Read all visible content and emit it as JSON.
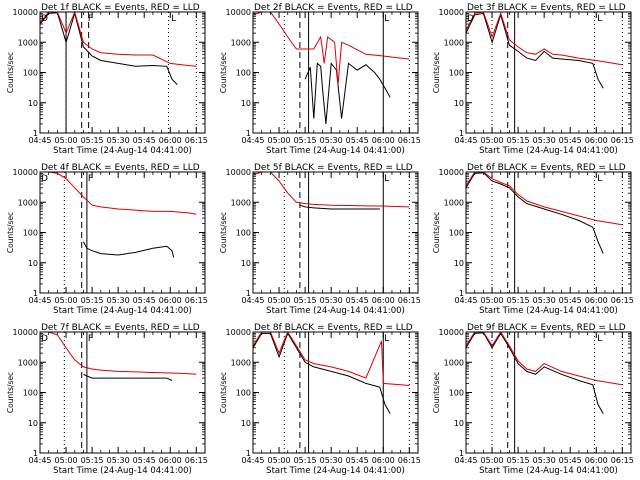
{
  "figure": {
    "ylabel": "Counts/sec",
    "xlabel": "Start Time (24-Aug-14 04:41:00)",
    "series_labels": {
      "black": "BLACK = Events",
      "red": "RED = LLD"
    },
    "colors": {
      "events": "#000000",
      "lld": "#e00000",
      "axes": "#000000",
      "background": "#ffffff"
    }
  },
  "chart_data": [
    {
      "type": "line",
      "title": "Det 1f BLACK = Events, RED = LLD",
      "xlim": [
        "04:45",
        "06:20"
      ],
      "ylim": [
        1,
        10000
      ],
      "yscale": "log",
      "xticks": [
        "04:45",
        "05:00",
        "05:15",
        "05:30",
        "05:45",
        "06:00",
        "06:15"
      ],
      "yticks": [
        "1",
        "10",
        "100",
        "1000",
        "10000"
      ],
      "markers": {
        "dotted": [
          "05:00",
          "05:59",
          "06:15"
        ],
        "dashed": [
          "05:09",
          "05:13"
        ],
        "solid": [
          "05:00"
        ]
      },
      "annotations": [
        {
          "text": "D",
          "x": "04:45"
        },
        {
          "text": "F",
          "x": "05:12"
        },
        {
          "text": "L",
          "x": "06:00"
        }
      ],
      "series": [
        {
          "name": "Events",
          "x": [
            "04:45",
            "04:50",
            "04:55",
            "05:00",
            "05:05",
            "05:10",
            "05:15",
            "05:20",
            "05:30",
            "05:40",
            "05:50",
            "05:58",
            "06:01",
            "06:04"
          ],
          "values": [
            4000,
            9000,
            9500,
            1000,
            9000,
            700,
            350,
            250,
            200,
            160,
            170,
            160,
            60,
            40
          ]
        },
        {
          "name": "LLD",
          "x": [
            "04:45",
            "04:50",
            "04:55",
            "05:00",
            "05:05",
            "05:10",
            "05:15",
            "05:20",
            "05:30",
            "05:40",
            "05:50",
            "06:00",
            "06:10",
            "06:15"
          ],
          "values": [
            4500,
            10000,
            10000,
            2000,
            10000,
            1000,
            600,
            450,
            400,
            380,
            380,
            200,
            170,
            160
          ]
        }
      ]
    },
    {
      "type": "line",
      "title": "Det 2f BLACK = Events, RED = LLD",
      "xlim": [
        "04:45",
        "06:20"
      ],
      "ylim": [
        1,
        10000
      ],
      "yscale": "log",
      "xticks": [
        "04:45",
        "05:00",
        "05:15",
        "05:30",
        "05:45",
        "06:00",
        "06:15"
      ],
      "yticks": [
        "1",
        "10",
        "100",
        "1000",
        "10000"
      ],
      "markers": {
        "dotted": [
          "05:03",
          "06:15"
        ],
        "dashed": [
          "05:12"
        ],
        "solid": [
          "05:17",
          "06:00"
        ]
      },
      "annotations": [
        {
          "text": "L",
          "x": "06:00"
        }
      ],
      "series": [
        {
          "name": "Events",
          "x": [
            "05:15",
            "05:18",
            "05:20",
            "05:22",
            "05:24",
            "05:25",
            "05:27",
            "05:30",
            "05:33",
            "05:36",
            "05:40",
            "05:45",
            "05:50",
            "05:55",
            "05:58",
            "06:01",
            "06:04"
          ],
          "values": [
            60,
            150,
            3,
            200,
            160,
            30,
            2,
            200,
            120,
            3,
            200,
            120,
            180,
            100,
            60,
            30,
            15
          ]
        },
        {
          "name": "LLD",
          "x": [
            "04:45",
            "04:50",
            "04:55",
            "05:00",
            "05:05",
            "05:10",
            "05:15",
            "05:20",
            "05:24",
            "05:26",
            "05:28",
            "05:32",
            "05:34",
            "05:36",
            "05:40",
            "05:50",
            "06:00",
            "06:10",
            "06:15"
          ],
          "values": [
            8000,
            10000,
            10000,
            4000,
            1500,
            600,
            600,
            600,
            1500,
            200,
            1500,
            1000,
            40,
            1000,
            800,
            400,
            350,
            300,
            280
          ]
        }
      ]
    },
    {
      "type": "line",
      "title": "Det 3f BLACK = Events, RED = LLD",
      "xlim": [
        "04:45",
        "06:20"
      ],
      "ylim": [
        1,
        10000
      ],
      "yscale": "log",
      "xticks": [
        "04:45",
        "05:00",
        "05:15",
        "05:30",
        "05:45",
        "06:00",
        "06:15"
      ],
      "yticks": [
        "1",
        "10",
        "100",
        "1000",
        "10000"
      ],
      "markers": {
        "dotted": [
          "05:00",
          "05:59",
          "06:15"
        ],
        "dashed": [
          "05:09"
        ],
        "solid": [
          "05:13"
        ]
      },
      "annotations": [
        {
          "text": "D",
          "x": "04:45"
        },
        {
          "text": "L",
          "x": "06:00"
        }
      ],
      "series": [
        {
          "name": "Events",
          "x": [
            "04:45",
            "04:50",
            "04:55",
            "05:00",
            "05:05",
            "05:10",
            "05:15",
            "05:20",
            "05:25",
            "05:30",
            "05:35",
            "05:40",
            "05:50",
            "05:58",
            "06:01",
            "06:04"
          ],
          "values": [
            2000,
            8000,
            9000,
            1000,
            8000,
            800,
            500,
            300,
            250,
            500,
            300,
            280,
            250,
            200,
            60,
            30
          ]
        },
        {
          "name": "LLD",
          "x": [
            "04:45",
            "04:50",
            "04:55",
            "05:00",
            "05:05",
            "05:10",
            "05:15",
            "05:20",
            "05:25",
            "05:30",
            "05:35",
            "05:40",
            "05:50",
            "06:00",
            "06:10",
            "06:15"
          ],
          "values": [
            2500,
            9000,
            10000,
            1500,
            9000,
            1200,
            700,
            450,
            400,
            600,
            400,
            380,
            300,
            250,
            200,
            180
          ]
        }
      ]
    },
    {
      "type": "line",
      "title": "Det 4f BLACK = Events, RED = LLD",
      "xlim": [
        "04:45",
        "06:20"
      ],
      "ylim": [
        1,
        10000
      ],
      "yscale": "log",
      "xticks": [
        "04:45",
        "05:00",
        "05:15",
        "05:30",
        "05:45",
        "06:00",
        "06:15"
      ],
      "yticks": [
        "1",
        "10",
        "100",
        "1000",
        "10000"
      ],
      "markers": {
        "dotted": [
          "04:59"
        ],
        "dashed": [
          "05:09"
        ],
        "solid": [
          "05:12"
        ]
      },
      "annotations": [
        {
          "text": "D",
          "x": "04:45"
        },
        {
          "text": "F",
          "x": "05:12"
        }
      ],
      "series": [
        {
          "name": "Events",
          "x": [
            "05:10",
            "05:12",
            "05:15",
            "05:20",
            "05:30",
            "05:40",
            "05:50",
            "05:58",
            "06:01",
            "06:02"
          ],
          "values": [
            50,
            30,
            25,
            20,
            18,
            22,
            30,
            35,
            25,
            15
          ]
        },
        {
          "name": "LLD",
          "x": [
            "04:45",
            "04:50",
            "04:55",
            "05:00",
            "05:05",
            "05:10",
            "05:15",
            "05:20",
            "05:30",
            "05:40",
            "05:50",
            "06:00",
            "06:10",
            "06:15"
          ],
          "values": [
            10000,
            10000,
            9000,
            6000,
            3000,
            1500,
            800,
            700,
            600,
            550,
            500,
            500,
            450,
            400
          ]
        }
      ]
    },
    {
      "type": "line",
      "title": "Det 5f BLACK = Events, RED = LLD",
      "xlim": [
        "04:45",
        "06:20"
      ],
      "ylim": [
        1,
        10000
      ],
      "yscale": "log",
      "xticks": [
        "04:45",
        "05:00",
        "05:15",
        "05:30",
        "05:45",
        "06:00",
        "06:15"
      ],
      "yticks": [
        "1",
        "10",
        "100",
        "1000",
        "10000"
      ],
      "markers": {
        "dotted": [
          "05:03",
          "06:15"
        ],
        "dashed": [
          "05:12"
        ],
        "solid": [
          "05:17",
          "06:00"
        ]
      },
      "annotations": [
        {
          "text": "L",
          "x": "06:00"
        }
      ],
      "series": [
        {
          "name": "Events",
          "x": [
            "05:12",
            "05:15",
            "05:20",
            "05:30",
            "05:40",
            "05:50",
            "05:58"
          ],
          "values": [
            800,
            700,
            650,
            600,
            600,
            600,
            600
          ]
        },
        {
          "name": "LLD",
          "x": [
            "04:45",
            "04:50",
            "04:55",
            "05:00",
            "05:05",
            "05:10",
            "05:15",
            "05:20",
            "05:30",
            "05:40",
            "05:50",
            "06:00",
            "06:10",
            "06:15"
          ],
          "values": [
            8000,
            10000,
            10000,
            5000,
            2000,
            1000,
            900,
            850,
            800,
            780,
            760,
            750,
            720,
            700
          ]
        }
      ]
    },
    {
      "type": "line",
      "title": "Det 6f BLACK = Events, RED = LLD",
      "xlim": [
        "04:45",
        "06:20"
      ],
      "ylim": [
        1,
        10000
      ],
      "yscale": "log",
      "xticks": [
        "04:45",
        "05:00",
        "05:15",
        "05:30",
        "05:45",
        "06:00",
        "06:15"
      ],
      "yticks": [
        "1",
        "10",
        "100",
        "1000",
        "10000"
      ],
      "markers": {
        "dotted": [
          "05:00",
          "05:59",
          "06:15"
        ],
        "dashed": [
          "05:09"
        ],
        "solid": [
          "05:13"
        ]
      },
      "annotations": [
        {
          "text": "L",
          "x": "06:00"
        }
      ],
      "series": [
        {
          "name": "Events",
          "x": [
            "04:45",
            "04:50",
            "04:55",
            "05:00",
            "05:05",
            "05:10",
            "05:15",
            "05:20",
            "05:30",
            "05:40",
            "05:50",
            "05:58",
            "06:01",
            "06:04"
          ],
          "values": [
            3000,
            9000,
            9500,
            5000,
            4000,
            3000,
            1500,
            900,
            600,
            400,
            250,
            150,
            50,
            20
          ]
        },
        {
          "name": "LLD",
          "x": [
            "04:45",
            "04:50",
            "04:55",
            "05:00",
            "05:05",
            "05:10",
            "05:15",
            "05:20",
            "05:30",
            "05:40",
            "05:50",
            "06:00",
            "06:10",
            "06:15"
          ],
          "values": [
            3500,
            10000,
            10000,
            6000,
            4500,
            3500,
            1800,
            1100,
            700,
            500,
            350,
            250,
            200,
            180
          ]
        }
      ]
    },
    {
      "type": "line",
      "title": "Det 7f BLACK = Events, RED = LLD",
      "xlim": [
        "04:45",
        "06:20"
      ],
      "ylim": [
        1,
        10000
      ],
      "yscale": "log",
      "xticks": [
        "04:45",
        "05:00",
        "05:15",
        "05:30",
        "05:45",
        "06:00",
        "06:15"
      ],
      "yticks": [
        "1",
        "10",
        "100",
        "1000",
        "10000"
      ],
      "markers": {
        "dotted": [
          "04:59"
        ],
        "dashed": [
          "05:09"
        ],
        "solid": [
          "05:12"
        ]
      },
      "annotations": [
        {
          "text": "D",
          "x": "04:45"
        },
        {
          "text": "F",
          "x": "05:12"
        }
      ],
      "series": [
        {
          "name": "Events",
          "x": [
            "05:10",
            "05:12",
            "05:15",
            "05:20",
            "05:30",
            "05:40",
            "05:50",
            "05:58",
            "06:01"
          ],
          "values": [
            400,
            350,
            300,
            300,
            300,
            300,
            300,
            300,
            250
          ]
        },
        {
          "name": "LLD",
          "x": [
            "04:45",
            "04:50",
            "04:55",
            "05:00",
            "05:05",
            "05:10",
            "05:15",
            "05:20",
            "05:30",
            "05:40",
            "05:50",
            "06:00",
            "06:10",
            "06:15"
          ],
          "values": [
            10000,
            10000,
            8000,
            3000,
            1200,
            700,
            600,
            550,
            500,
            480,
            460,
            440,
            420,
            400
          ]
        }
      ]
    },
    {
      "type": "line",
      "title": "Det 8f BLACK = Events, RED = LLD",
      "xlim": [
        "04:45",
        "06:20"
      ],
      "ylim": [
        1,
        10000
      ],
      "yscale": "log",
      "xticks": [
        "04:45",
        "05:00",
        "05:15",
        "05:30",
        "05:45",
        "06:00",
        "06:15"
      ],
      "yticks": [
        "1",
        "10",
        "100",
        "1000",
        "10000"
      ],
      "markers": {
        "dotted": [
          "05:03",
          "06:15"
        ],
        "dashed": [
          "05:12"
        ],
        "solid": [
          "05:17",
          "06:00"
        ]
      },
      "annotations": [
        {
          "text": "L",
          "x": "06:00"
        }
      ],
      "series": [
        {
          "name": "Events",
          "x": [
            "04:45",
            "04:50",
            "04:55",
            "05:00",
            "05:05",
            "05:10",
            "05:15",
            "05:20",
            "05:30",
            "05:40",
            "05:50",
            "05:58",
            "06:01",
            "06:04"
          ],
          "values": [
            3000,
            9000,
            9000,
            1500,
            9000,
            3000,
            1000,
            700,
            500,
            350,
            200,
            150,
            40,
            20
          ]
        },
        {
          "name": "LLD",
          "x": [
            "04:45",
            "04:50",
            "04:55",
            "05:00",
            "05:05",
            "05:10",
            "05:15",
            "05:20",
            "05:30",
            "05:40",
            "05:50",
            "05:59",
            "06:00",
            "06:10",
            "06:15"
          ],
          "values": [
            3500,
            10000,
            10000,
            2000,
            10000,
            3500,
            1200,
            900,
            700,
            500,
            300,
            5000,
            200,
            180,
            170
          ]
        }
      ]
    },
    {
      "type": "line",
      "title": "Det 9f BLACK = Events, RED = LLD",
      "xlim": [
        "04:45",
        "06:20"
      ],
      "ylim": [
        1,
        10000
      ],
      "yscale": "log",
      "xticks": [
        "04:45",
        "05:00",
        "05:15",
        "05:30",
        "05:45",
        "06:00",
        "06:15"
      ],
      "yticks": [
        "1",
        "10",
        "100",
        "1000",
        "10000"
      ],
      "markers": {
        "dotted": [
          "05:00",
          "05:59",
          "06:15"
        ],
        "dashed": [
          "05:09"
        ],
        "solid": [
          "05:13"
        ]
      },
      "annotations": [
        {
          "text": "L",
          "x": "06:00"
        }
      ],
      "series": [
        {
          "name": "Events",
          "x": [
            "04:45",
            "04:50",
            "04:55",
            "05:00",
            "05:05",
            "05:10",
            "05:15",
            "05:20",
            "05:25",
            "05:30",
            "05:40",
            "05:50",
            "05:58",
            "06:01",
            "06:04"
          ],
          "values": [
            3000,
            9000,
            9500,
            3000,
            9000,
            3000,
            900,
            500,
            400,
            700,
            400,
            250,
            180,
            40,
            20
          ]
        },
        {
          "name": "LLD",
          "x": [
            "04:45",
            "04:50",
            "04:55",
            "05:00",
            "05:05",
            "05:10",
            "05:15",
            "05:20",
            "05:25",
            "05:30",
            "05:40",
            "05:50",
            "06:00",
            "06:10",
            "06:15"
          ],
          "values": [
            3500,
            10000,
            10000,
            3500,
            10000,
            3500,
            1100,
            600,
            500,
            900,
            500,
            350,
            250,
            200,
            180
          ]
        }
      ]
    }
  ]
}
